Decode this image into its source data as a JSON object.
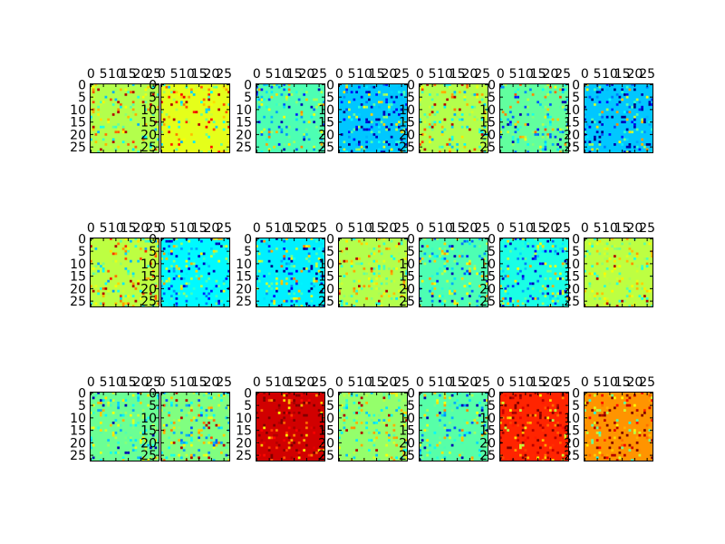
{
  "figure": {
    "rows": 3,
    "cols": 7
  },
  "chart_data": {
    "type": "heatmap",
    "colormap": "jet",
    "grid_size": 28,
    "x_ticks": [
      "0",
      "5",
      "10",
      "15",
      "20",
      "25"
    ],
    "y_ticks": [
      "0",
      "5",
      "10",
      "15",
      "20",
      "25"
    ],
    "xlim": [
      0,
      28
    ],
    "ylim": [
      0,
      28
    ],
    "tick_position_x": "top",
    "tick_position_y": "left",
    "panels": [
      {
        "row": 0,
        "col": 0,
        "base": 0.55,
        "spread": 0.12,
        "seed": 11
      },
      {
        "row": 0,
        "col": 1,
        "base": 0.6,
        "spread": 0.14,
        "seed": 12
      },
      {
        "row": 0,
        "col": 2,
        "base": 0.45,
        "spread": 0.14,
        "seed": 13
      },
      {
        "row": 0,
        "col": 3,
        "base": 0.32,
        "spread": 0.16,
        "seed": 14
      },
      {
        "row": 0,
        "col": 4,
        "base": 0.55,
        "spread": 0.12,
        "seed": 15
      },
      {
        "row": 0,
        "col": 5,
        "base": 0.47,
        "spread": 0.15,
        "seed": 16
      },
      {
        "row": 0,
        "col": 6,
        "base": 0.32,
        "spread": 0.2,
        "seed": 17
      },
      {
        "row": 1,
        "col": 0,
        "base": 0.56,
        "spread": 0.13,
        "seed": 21
      },
      {
        "row": 1,
        "col": 1,
        "base": 0.37,
        "spread": 0.16,
        "seed": 22
      },
      {
        "row": 1,
        "col": 2,
        "base": 0.36,
        "spread": 0.2,
        "seed": 23
      },
      {
        "row": 1,
        "col": 3,
        "base": 0.55,
        "spread": 0.09,
        "seed": 24
      },
      {
        "row": 1,
        "col": 4,
        "base": 0.45,
        "spread": 0.13,
        "seed": 25
      },
      {
        "row": 1,
        "col": 5,
        "base": 0.4,
        "spread": 0.15,
        "seed": 26
      },
      {
        "row": 1,
        "col": 6,
        "base": 0.56,
        "spread": 0.08,
        "seed": 27
      },
      {
        "row": 2,
        "col": 0,
        "base": 0.48,
        "spread": 0.1,
        "seed": 31
      },
      {
        "row": 2,
        "col": 1,
        "base": 0.5,
        "spread": 0.14,
        "seed": 32
      },
      {
        "row": 2,
        "col": 2,
        "base": 0.92,
        "spread": 0.14,
        "seed": 33
      },
      {
        "row": 2,
        "col": 3,
        "base": 0.52,
        "spread": 0.1,
        "seed": 34
      },
      {
        "row": 2,
        "col": 4,
        "base": 0.46,
        "spread": 0.13,
        "seed": 35
      },
      {
        "row": 2,
        "col": 5,
        "base": 0.84,
        "spread": 0.14,
        "seed": 36
      },
      {
        "row": 2,
        "col": 6,
        "base": 0.73,
        "spread": 0.16,
        "seed": 37
      }
    ]
  }
}
